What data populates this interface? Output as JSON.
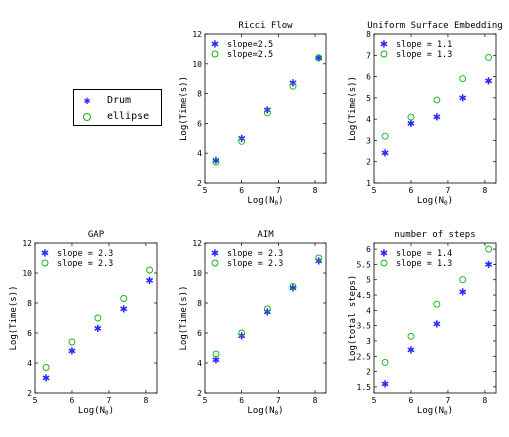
{
  "global_legend": {
    "entries": [
      {
        "label": "Drum",
        "marker": "star",
        "color": "#2a2aff"
      },
      {
        "label": "ellipse",
        "marker": "circle",
        "color": "#10b010"
      }
    ]
  },
  "chart_data": [
    {
      "type": "scatter",
      "title": "Ricci Flow",
      "xlabel": "Log(N_0)",
      "ylabel": "Log(Time(s))",
      "xlim": [
        5,
        8.3
      ],
      "ylim": [
        2,
        12
      ],
      "xticks": [
        5,
        6,
        7,
        8
      ],
      "yticks": [
        2,
        4,
        6,
        8,
        10,
        12
      ],
      "legend": [
        "slope=2.5",
        "slope=2.5"
      ],
      "legend_position": "top-left",
      "series": [
        {
          "name": "Drum",
          "marker": "star",
          "x": [
            5.3,
            6.0,
            6.7,
            7.4,
            8.1
          ],
          "y": [
            3.5,
            5.0,
            6.9,
            8.7,
            10.4
          ]
        },
        {
          "name": "ellipse",
          "marker": "circle",
          "x": [
            5.3,
            6.0,
            6.7,
            7.4,
            8.1
          ],
          "y": [
            3.4,
            4.8,
            6.7,
            8.5,
            10.4
          ]
        }
      ]
    },
    {
      "type": "scatter",
      "title": "Uniform Surface Embedding",
      "xlabel": "Log(N_0)",
      "ylabel": "Log(Time(s))",
      "xlim": [
        5,
        8.3
      ],
      "ylim": [
        1,
        8
      ],
      "xticks": [
        5,
        6,
        7,
        8
      ],
      "yticks": [
        1,
        2,
        3,
        4,
        5,
        6,
        7,
        8
      ],
      "legend": [
        "slope = 1.1",
        "slope = 1.3"
      ],
      "legend_position": "top-left",
      "series": [
        {
          "name": "Drum",
          "marker": "star",
          "x": [
            5.3,
            6.0,
            6.7,
            7.4,
            8.1
          ],
          "y": [
            2.4,
            3.8,
            4.1,
            5.0,
            5.8
          ]
        },
        {
          "name": "ellipse",
          "marker": "circle",
          "x": [
            5.3,
            6.0,
            6.7,
            7.4,
            8.1
          ],
          "y": [
            3.2,
            4.1,
            4.9,
            5.9,
            6.9
          ]
        }
      ]
    },
    {
      "type": "scatter",
      "title": "GAP",
      "xlabel": "Log(N_0)",
      "ylabel": "Log(Time(s))",
      "xlim": [
        5,
        8.3
      ],
      "ylim": [
        2,
        12
      ],
      "xticks": [
        5,
        6,
        7,
        8
      ],
      "yticks": [
        2,
        4,
        6,
        8,
        10,
        12
      ],
      "legend": [
        "slope = 2.3",
        "slope = 2.3"
      ],
      "legend_position": "top-left",
      "series": [
        {
          "name": "Drum",
          "marker": "star",
          "x": [
            5.3,
            6.0,
            6.7,
            7.4,
            8.1
          ],
          "y": [
            3.0,
            4.8,
            6.3,
            7.6,
            9.5
          ]
        },
        {
          "name": "ellipse",
          "marker": "circle",
          "x": [
            5.3,
            6.0,
            6.7,
            7.4,
            8.1
          ],
          "y": [
            3.7,
            5.4,
            7.0,
            8.3,
            10.2
          ]
        }
      ]
    },
    {
      "type": "scatter",
      "title": "AIM",
      "xlabel": "Log(N_0)",
      "ylabel": "Log(Time(s))",
      "xlim": [
        5,
        8.3
      ],
      "ylim": [
        2,
        12
      ],
      "xticks": [
        5,
        6,
        7,
        8
      ],
      "yticks": [
        2,
        4,
        6,
        8,
        10,
        12
      ],
      "legend": [
        "slope = 2.3",
        "slope = 2.3"
      ],
      "legend_position": "top-left",
      "series": [
        {
          "name": "Drum",
          "marker": "star",
          "x": [
            5.3,
            6.0,
            6.7,
            7.4,
            8.1
          ],
          "y": [
            4.2,
            5.8,
            7.4,
            9.0,
            10.8
          ]
        },
        {
          "name": "ellipse",
          "marker": "circle",
          "x": [
            5.3,
            6.0,
            6.7,
            7.4,
            8.1
          ],
          "y": [
            4.6,
            6.0,
            7.6,
            9.1,
            11.0
          ]
        }
      ]
    },
    {
      "type": "scatter",
      "title": "number of steps",
      "xlabel": "Log(N_0)",
      "ylabel": "Log(total steps)",
      "xlim": [
        5,
        8.3
      ],
      "ylim": [
        1.3,
        6.2
      ],
      "xticks": [
        5,
        6,
        7,
        8
      ],
      "yticks": [
        1.5,
        2,
        2.5,
        3,
        3.5,
        4,
        4.5,
        5,
        5.5,
        6
      ],
      "legend": [
        "slope = 1.4",
        "slope = 1.3"
      ],
      "legend_position": "top-left",
      "series": [
        {
          "name": "Drum",
          "marker": "star",
          "x": [
            5.3,
            6.0,
            6.7,
            7.4,
            8.1
          ],
          "y": [
            1.6,
            2.7,
            3.55,
            4.6,
            5.5
          ]
        },
        {
          "name": "ellipse",
          "marker": "circle",
          "x": [
            5.3,
            6.0,
            6.7,
            7.4,
            8.1
          ],
          "y": [
            2.3,
            3.15,
            4.2,
            5.0,
            6.0
          ]
        }
      ]
    }
  ],
  "style": {
    "drum_color": "#2a2aff",
    "ellipse_color": "#10b010",
    "axis_color": "#000000"
  }
}
